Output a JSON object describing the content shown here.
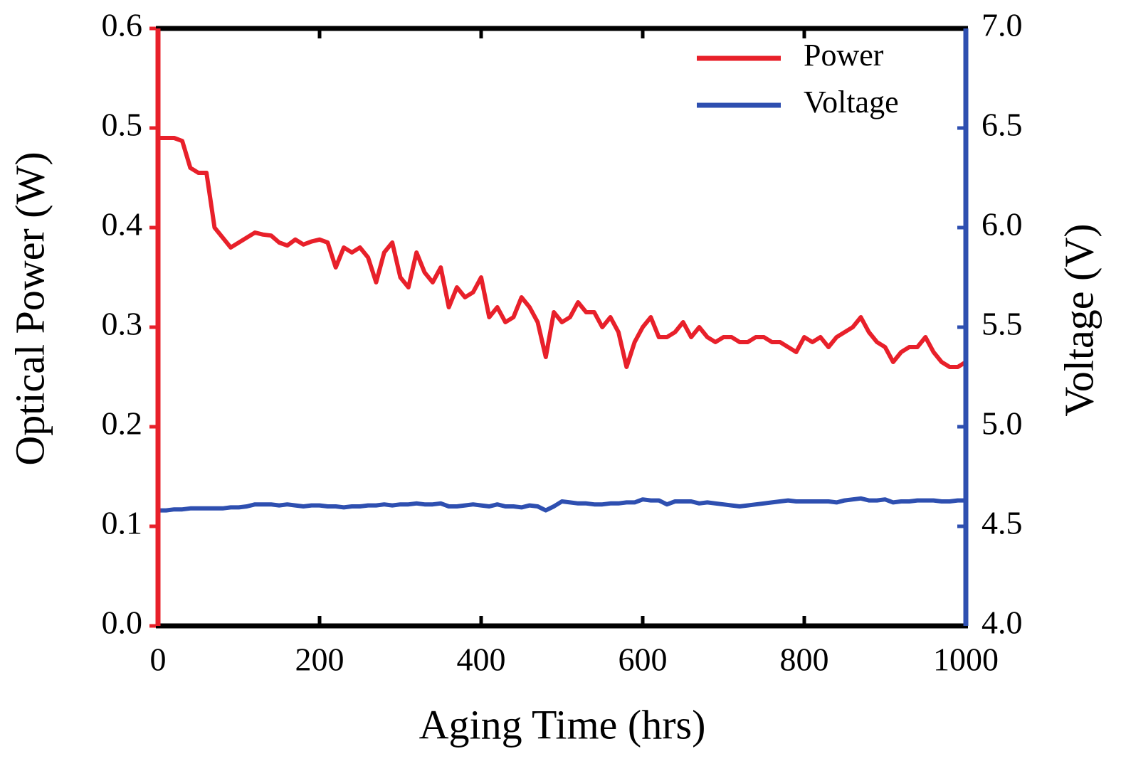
{
  "chart_data": {
    "type": "line",
    "xlabel": "Aging Time (hrs)",
    "ylabel": "Optical Power (W)",
    "y2label": "Voltage (V)",
    "x": [
      0,
      10,
      20,
      30,
      40,
      50,
      60,
      70,
      80,
      90,
      100,
      110,
      120,
      130,
      140,
      150,
      160,
      170,
      180,
      190,
      200,
      210,
      220,
      230,
      240,
      250,
      260,
      270,
      280,
      290,
      300,
      310,
      320,
      330,
      340,
      350,
      360,
      370,
      380,
      390,
      400,
      410,
      420,
      430,
      440,
      450,
      460,
      470,
      480,
      490,
      500,
      510,
      520,
      530,
      540,
      550,
      560,
      570,
      580,
      590,
      600,
      610,
      620,
      630,
      640,
      650,
      660,
      670,
      680,
      690,
      700,
      710,
      720,
      730,
      740,
      750,
      760,
      770,
      780,
      790,
      800,
      810,
      820,
      830,
      840,
      850,
      860,
      870,
      880,
      890,
      900,
      910,
      920,
      930,
      940,
      950,
      960,
      970,
      980,
      990,
      1000
    ],
    "series": [
      {
        "name": "Power",
        "color": "#e8202a",
        "axis": "y",
        "values": [
          0.49,
          0.49,
          0.49,
          0.487,
          0.46,
          0.455,
          0.455,
          0.4,
          0.39,
          0.38,
          0.385,
          0.39,
          0.395,
          0.393,
          0.392,
          0.385,
          0.382,
          0.388,
          0.383,
          0.386,
          0.388,
          0.385,
          0.36,
          0.38,
          0.375,
          0.38,
          0.37,
          0.345,
          0.375,
          0.385,
          0.35,
          0.34,
          0.375,
          0.355,
          0.345,
          0.36,
          0.32,
          0.34,
          0.33,
          0.335,
          0.35,
          0.31,
          0.32,
          0.305,
          0.31,
          0.33,
          0.32,
          0.305,
          0.27,
          0.315,
          0.305,
          0.31,
          0.325,
          0.315,
          0.315,
          0.3,
          0.31,
          0.295,
          0.26,
          0.285,
          0.3,
          0.31,
          0.29,
          0.29,
          0.295,
          0.305,
          0.29,
          0.3,
          0.29,
          0.285,
          0.29,
          0.29,
          0.285,
          0.285,
          0.29,
          0.29,
          0.285,
          0.285,
          0.28,
          0.275,
          0.29,
          0.285,
          0.29,
          0.28,
          0.29,
          0.295,
          0.3,
          0.31,
          0.295,
          0.285,
          0.28,
          0.265,
          0.275,
          0.28,
          0.28,
          0.29,
          0.275,
          0.265,
          0.26,
          0.26,
          0.265
        ]
      },
      {
        "name": "Voltage",
        "color": "#2e4fb0",
        "axis": "y2",
        "values": [
          4.58,
          4.58,
          4.585,
          4.585,
          4.59,
          4.59,
          4.59,
          4.59,
          4.59,
          4.595,
          4.595,
          4.6,
          4.61,
          4.61,
          4.61,
          4.605,
          4.61,
          4.605,
          4.6,
          4.605,
          4.605,
          4.6,
          4.6,
          4.595,
          4.6,
          4.6,
          4.605,
          4.605,
          4.61,
          4.605,
          4.61,
          4.61,
          4.615,
          4.61,
          4.61,
          4.615,
          4.6,
          4.6,
          4.605,
          4.61,
          4.605,
          4.6,
          4.61,
          4.6,
          4.6,
          4.595,
          4.605,
          4.6,
          4.58,
          4.6,
          4.625,
          4.62,
          4.615,
          4.615,
          4.61,
          4.61,
          4.615,
          4.615,
          4.62,
          4.62,
          4.635,
          4.63,
          4.63,
          4.61,
          4.625,
          4.625,
          4.625,
          4.615,
          4.62,
          4.615,
          4.61,
          4.605,
          4.6,
          4.605,
          4.61,
          4.615,
          4.62,
          4.625,
          4.63,
          4.625,
          4.625,
          4.625,
          4.625,
          4.625,
          4.62,
          4.63,
          4.635,
          4.64,
          4.63,
          4.63,
          4.635,
          4.62,
          4.625,
          4.625,
          4.63,
          4.63,
          4.63,
          4.625,
          4.625,
          4.63,
          4.63
        ]
      }
    ],
    "xlim": [
      0,
      1000
    ],
    "xticks": [
      0,
      200,
      400,
      600,
      800,
      1000
    ],
    "ylim": [
      0,
      0.6
    ],
    "yticks": [
      {
        "value": 0,
        "label": "0.0"
      },
      0.1,
      0.2,
      0.3,
      0.4,
      0.5,
      0.6
    ],
    "y2lim": [
      4,
      7
    ],
    "y2ticks": [
      {
        "value": 4,
        "label": "4.0"
      },
      4.5,
      {
        "value": 5,
        "label": "5.0"
      },
      5.5,
      {
        "value": 6,
        "label": "6.0"
      },
      6.5,
      {
        "value": 7,
        "label": "7.0"
      }
    ],
    "legend": "upper right",
    "grid": false
  }
}
